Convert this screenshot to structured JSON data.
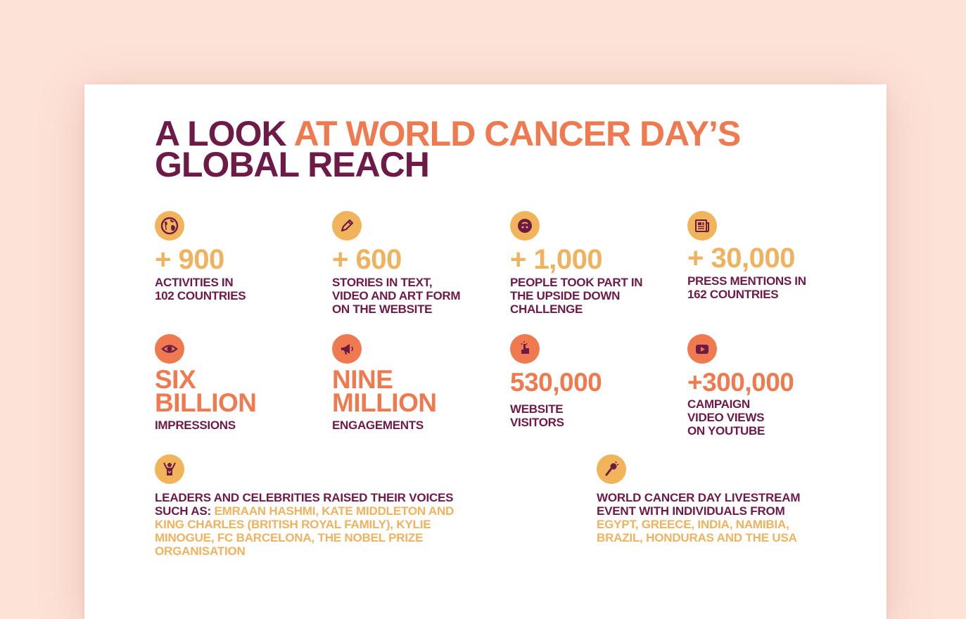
{
  "title": {
    "part1": "A LOOK ",
    "part2": "AT WORLD CANCER DAY’S",
    "part3": "GLOBAL REACH"
  },
  "row1": [
    {
      "icon": "globe-icon",
      "value": "+ 900",
      "desc_line1": "ACTIVITIES IN",
      "desc_line2": "102 COUNTRIES",
      "desc_line3": ""
    },
    {
      "icon": "pencil-icon",
      "value": "+ 600",
      "desc_line1": "STORIES IN TEXT,",
      "desc_line2": "VIDEO AND ART FORM",
      "desc_line3": "ON THE WEBSITE"
    },
    {
      "icon": "face-icon",
      "value": "+ 1,000",
      "desc_line1": "PEOPLE TOOK PART IN",
      "desc_line2": "THE UPSIDE DOWN",
      "desc_line3": "CHALLENGE"
    },
    {
      "icon": "newspaper-icon",
      "value": "+ 30,000",
      "desc_line1": "PRESS MENTIONS IN",
      "desc_line2": "162 COUNTRIES",
      "desc_line3": ""
    }
  ],
  "row2": [
    {
      "icon": "eye-icon",
      "value_line1": "SIX",
      "value_line2": "BILLION",
      "desc_line1": "IMPRESSIONS",
      "desc_line2": "",
      "desc_line3": ""
    },
    {
      "icon": "megaphone-icon",
      "value_line1": "NINE",
      "value_line2": "MILLION",
      "desc_line1": "ENGAGEMENTS",
      "desc_line2": "",
      "desc_line3": ""
    },
    {
      "icon": "pointer-icon",
      "value_line1": "530,000",
      "value_line2": "",
      "desc_line1": "WEBSITE",
      "desc_line2": "VISITORS",
      "desc_line3": ""
    },
    {
      "icon": "youtube-icon",
      "value_line1": "+300,000",
      "value_line2": "",
      "desc_line1": "CAMPAIGN",
      "desc_line2": "VIDEO VIEWS",
      "desc_line3": "ON YOUTUBE"
    }
  ],
  "leaders": {
    "icon": "cheering-person-icon",
    "lead_line1": "LEADERS AND CELEBRITIES RAISED THEIR VOICES",
    "lead_line2": "SUCH AS: ",
    "hl_line2": "EMRAAN HASHMI, KATE MIDDLETON AND",
    "hl_line3": "KING CHARLES (BRITISH ROYAL FAMILY), KYLIE",
    "hl_line4": "MINOGUE, FC BARCELONA, THE NOBEL PRIZE",
    "hl_line5": "ORGANISATION"
  },
  "livestream": {
    "icon": "microphone-icon",
    "lead_line1": "WORLD CANCER DAY LIVESTREAM",
    "lead_line2": "EVENT WITH INDIVIDUALS FROM",
    "hl_line3": "EGYPT, GREECE, INDIA, NAMIBIA,",
    "hl_line4": "BRAZIL, HONDURAS AND THE USA"
  },
  "colors": {
    "background": "#fde2d8",
    "plum": "#6e1a47",
    "orange": "#ef7a4f",
    "yellow": "#efb25e"
  }
}
